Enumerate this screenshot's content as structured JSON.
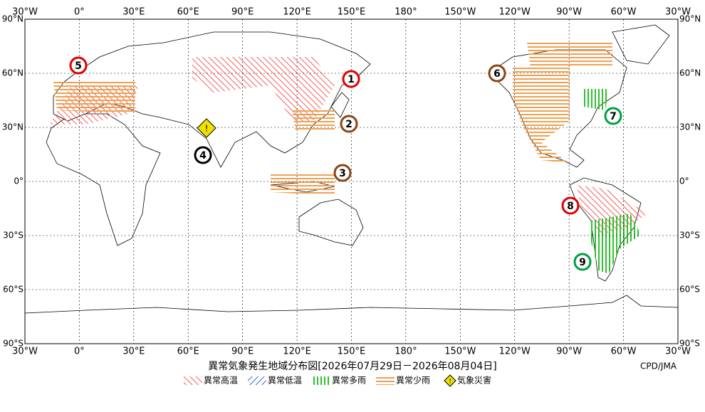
{
  "map": {
    "title": "異常気象発生地域分布図[2026年07月29日－2026年08月04日]",
    "credit": "CPD/JMA",
    "lon_labels": [
      "30°W",
      "0°",
      "30°E",
      "60°E",
      "90°E",
      "120°E",
      "150°E",
      "180°",
      "150°W",
      "120°W",
      "90°W",
      "60°W",
      "30°W"
    ],
    "lat_labels": [
      "90°N",
      "60°N",
      "30°N",
      "0°",
      "30°S",
      "60°S",
      "90°S"
    ],
    "markers": [
      {
        "label": "1",
        "color": "#e00000"
      },
      {
        "label": "2",
        "color": "#8b4513"
      },
      {
        "label": "3",
        "color": "#8b4513"
      },
      {
        "label": "4",
        "color": "#000000"
      },
      {
        "label": "5",
        "color": "#e00000"
      },
      {
        "label": "6",
        "color": "#8b4513"
      },
      {
        "label": "7",
        "color": "#00a040"
      },
      {
        "label": "8",
        "color": "#e00000"
      },
      {
        "label": "9",
        "color": "#00a040"
      }
    ],
    "warning_symbol": "!",
    "legend": [
      {
        "label": "異常高温",
        "color": "#f06060"
      },
      {
        "label": "異常低温",
        "color": "#4060e0"
      },
      {
        "label": "異常多雨",
        "color": "#30c030"
      },
      {
        "label": "異常少雨",
        "color": "#f0a050"
      },
      {
        "label": "気象災害",
        "color": "#f0e000"
      }
    ]
  }
}
